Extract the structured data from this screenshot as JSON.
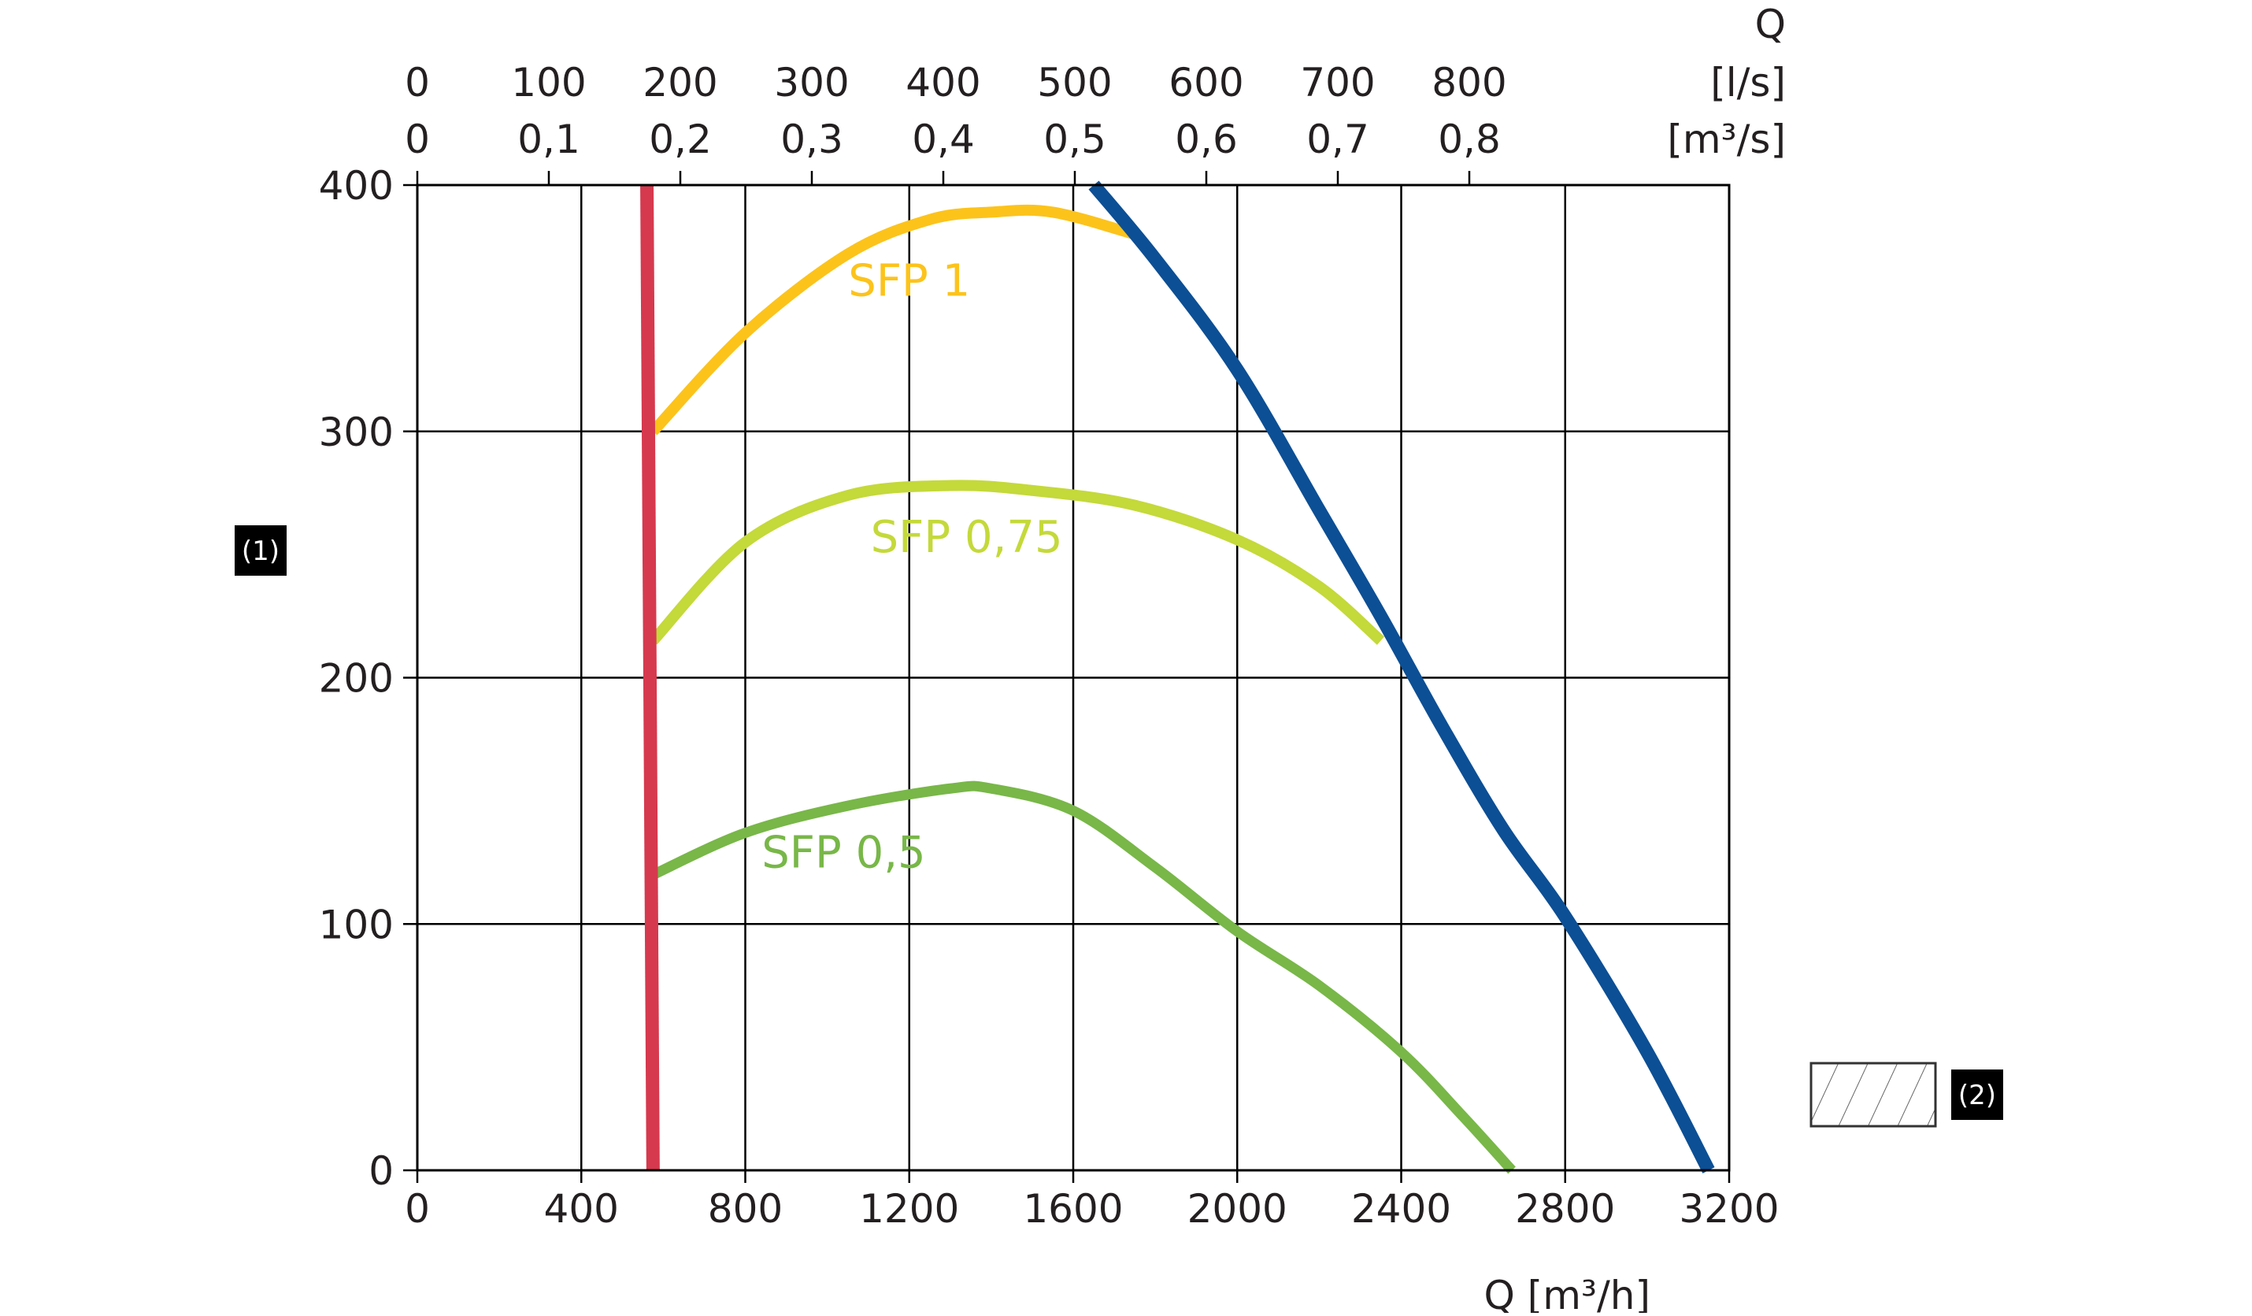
{
  "chart_data": {
    "type": "line",
    "title": "",
    "xlabel": "Q [m³/h]",
    "ylabel": "",
    "xlim": [
      0,
      3200
    ],
    "ylim": [
      0,
      400
    ],
    "x_ticks": [
      0,
      400,
      800,
      1200,
      1600,
      2000,
      2400,
      2800,
      3200
    ],
    "y_ticks": [
      0,
      100,
      200,
      300,
      400
    ],
    "grid": true,
    "top_axis": {
      "title": "Q",
      "row1_unit": "[l/s]",
      "row2_unit": "[m³/s]",
      "row1_ticks": [
        0,
        100,
        200,
        300,
        400,
        500,
        600,
        700,
        800
      ],
      "row1_labels": [
        "0",
        "100",
        "200",
        "300",
        "400",
        "500",
        "600",
        "700",
        "800"
      ],
      "row2_ticks": [
        0,
        0.1,
        0.2,
        0.3,
        0.4,
        0.5,
        0.6,
        0.7,
        0.8
      ],
      "row2_labels": [
        "0",
        "0,1",
        "0,2",
        "0,3",
        "0,4",
        "0,5",
        "0,6",
        "0,7",
        "0,8"
      ]
    },
    "series": [
      {
        "name": "SFP 1",
        "color": "#fcc31b",
        "label_at": [
          1200,
          355
        ],
        "x": [
          575,
          800,
          1050,
          1250,
          1400,
          1550,
          1750
        ],
        "y": [
          300,
          340,
          372,
          386,
          389,
          389,
          380
        ]
      },
      {
        "name": "SFP 0,75",
        "color": "#c4d93a",
        "label_at": [
          1340,
          251
        ],
        "x": [
          575,
          800,
          1050,
          1300,
          1500,
          1750,
          2000,
          2200,
          2350
        ],
        "y": [
          215,
          255,
          274,
          278,
          276,
          270,
          256,
          237,
          215
        ]
      },
      {
        "name": "SFP 0,5",
        "color": "#78b748",
        "label_at": [
          1040,
          123
        ],
        "x": [
          575,
          800,
          1050,
          1300,
          1400,
          1600,
          1800,
          2000,
          2200,
          2400,
          2550,
          2670
        ],
        "y": [
          120,
          137,
          148,
          155,
          155,
          146,
          123,
          97,
          75,
          48,
          22,
          0
        ]
      },
      {
        "name": "",
        "color": "#d6394e",
        "x": [
          560,
          575
        ],
        "y": [
          400,
          0
        ]
      },
      {
        "name": "",
        "color": "#0c4f95",
        "x": [
          1650,
          1800,
          2000,
          2200,
          2350,
          2500,
          2650,
          2800,
          3000,
          3150
        ],
        "y": [
          400,
          370,
          325,
          268,
          225,
          180,
          138,
          103,
          48,
          0
        ]
      }
    ],
    "annotations": [
      {
        "id": "label-1",
        "text": "(1)"
      },
      {
        "id": "label-2",
        "text": "(2)"
      }
    ]
  }
}
